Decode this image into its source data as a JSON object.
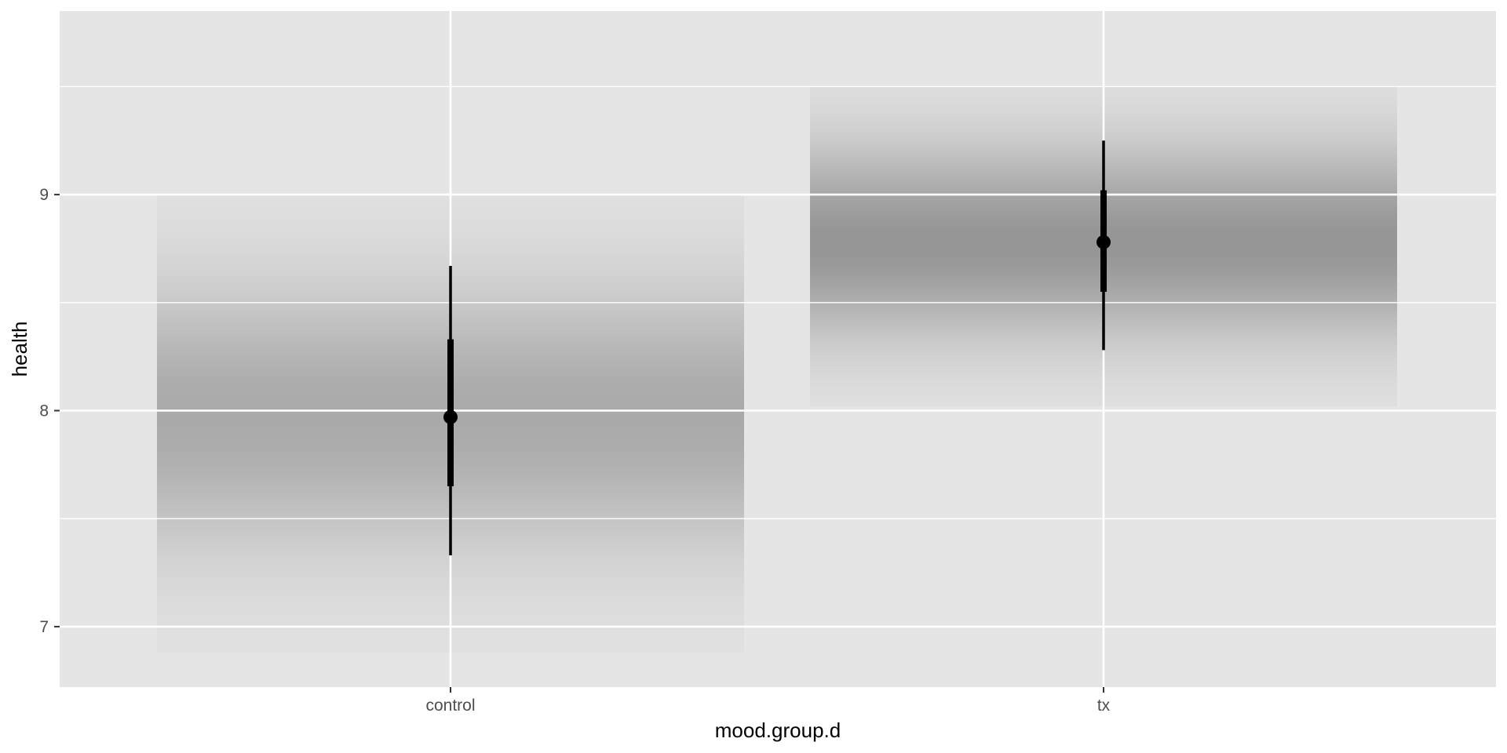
{
  "chart_data": {
    "type": "gradient-interval",
    "xlabel": "mood.group.d",
    "ylabel": "health",
    "categories": [
      "control",
      "tx"
    ],
    "ylim": [
      6.72,
      9.85
    ],
    "yticks": [
      7,
      8,
      9
    ],
    "y_minor_ticks": [
      7.5,
      8.5,
      9.5
    ],
    "grid": true,
    "series": [
      {
        "category": "control",
        "point": 7.97,
        "interval_66": [
          7.65,
          8.33
        ],
        "interval_95": [
          7.33,
          8.67
        ],
        "density_range": [
          6.88,
          9.0
        ],
        "peak_shade": "#a9a9a9"
      },
      {
        "category": "tx",
        "point": 8.78,
        "interval_66": [
          8.55,
          9.02
        ],
        "interval_95": [
          8.28,
          9.25
        ],
        "density_range": [
          8.02,
          9.5
        ],
        "peak_shade": "#959595"
      }
    ],
    "colors": {
      "panel": "#e5e5e5",
      "grid": "#ffffff",
      "interval": "#000000",
      "tick": "#333333",
      "tick_label": "#4d4d4d"
    }
  }
}
